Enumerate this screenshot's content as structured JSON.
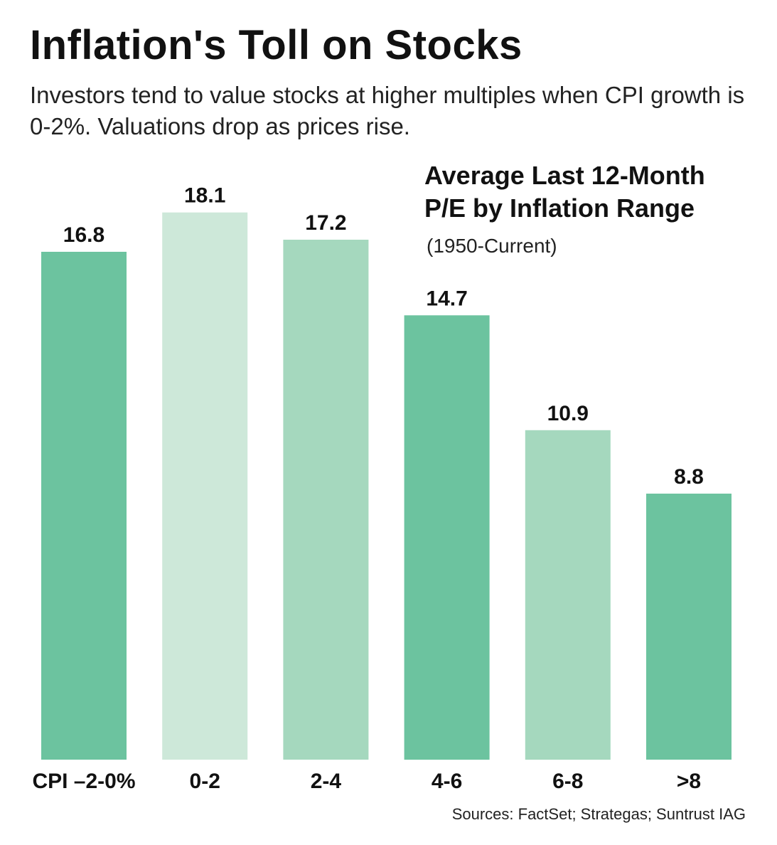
{
  "header": {
    "title": "Inflation's Toll on Stocks",
    "subtitle": "Investors tend to value stocks at higher multiples when CPI growth is 0-2%. Valuations drop as prices rise."
  },
  "chart_data": {
    "type": "bar",
    "title_line1": "Average Last 12-Month",
    "title_line2": "P/E by Inflation Range",
    "subtitle": "(1950-Current)",
    "categories": [
      "CPI –2-0%",
      "0-2",
      "2-4",
      "4-6",
      "6-8",
      ">8"
    ],
    "values": [
      16.8,
      18.1,
      17.2,
      14.7,
      10.9,
      8.8
    ],
    "value_labels": [
      "16.8",
      "18.1",
      "17.2",
      "14.7",
      "10.9",
      "8.8"
    ],
    "bar_colors": [
      "#6cc39f",
      "#cde8d9",
      "#a5d8be",
      "#6cc39f",
      "#a5d8be",
      "#6cc39f"
    ],
    "xlabel": "",
    "ylabel": "",
    "ylim": [
      0,
      18.1
    ],
    "grid": false,
    "legend": "none"
  },
  "footer": {
    "source": "Sources: FactSet; Strategas; Suntrust IAG"
  }
}
